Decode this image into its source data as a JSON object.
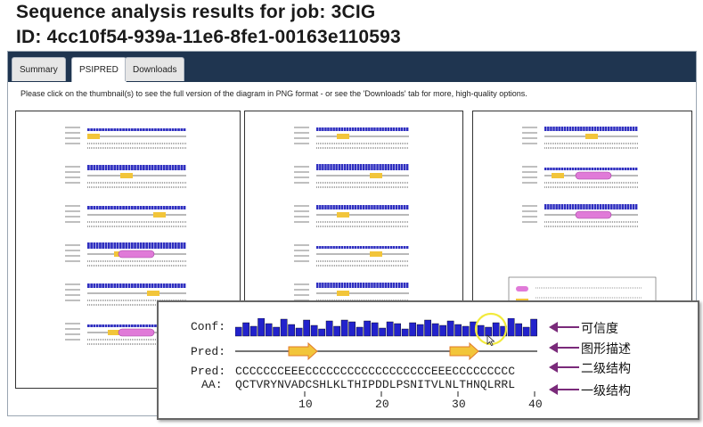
{
  "header": {
    "title_line1": "Sequence analysis results for job: 3CIG",
    "title_line2": "ID: 4cc10f54-939a-11e6-8fe1-00163e110593"
  },
  "tabs": [
    {
      "label": "Summary",
      "active": false
    },
    {
      "label": "PSIPRED",
      "active": true
    },
    {
      "label": "Downloads",
      "active": false
    }
  ],
  "hint": "Please click on the thumbnail(s) to see the full version of the diagram in PNG format - or see the 'Downloads' tab for more, high-quality options.",
  "zoom": {
    "conf_label": "Conf:",
    "pred_label": "Pred:",
    "pred_seq_label": "Pred:",
    "aa_label": "AA:",
    "pred_seq": "CCCCCCCEEECCCCCCCCCCCCCCCCCCEEECCCCCCCCC",
    "aa_seq": "QCTVRYNVADCSHLKLTHIPDDLPSNITVLNLTHNQLRRL",
    "ticks": [
      "10",
      "20",
      "30",
      "40"
    ]
  },
  "annotations": [
    "可信度",
    "图形描述",
    "二级结构",
    "一级结构"
  ],
  "colors": {
    "tabbar": "#1f3550",
    "conf_bar": "#2222cc",
    "strand": "#f2c53a",
    "helix": "#e07ad8",
    "arrow": "#7a2a7a",
    "highlight_circle": "#f2ea3c"
  }
}
